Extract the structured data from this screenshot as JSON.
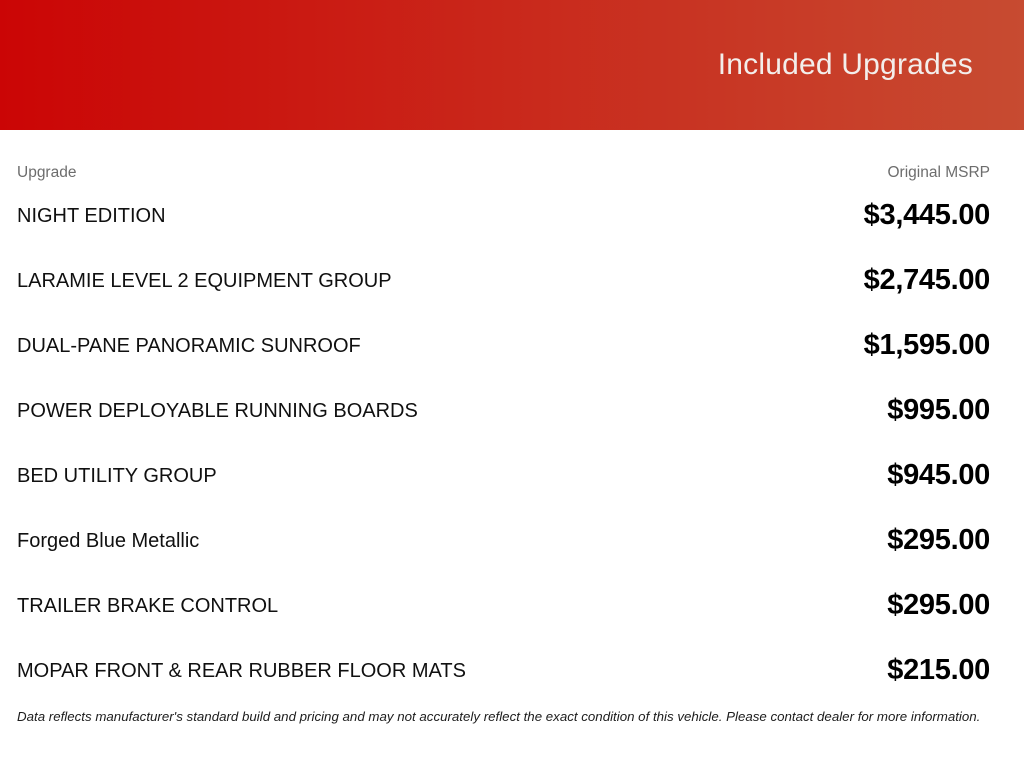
{
  "header": {
    "title": "Included Upgrades"
  },
  "table": {
    "columns": {
      "upgrade": "Upgrade",
      "msrp": "Original MSRP"
    },
    "rows": [
      {
        "name": "NIGHT EDITION",
        "price": "$3,445.00"
      },
      {
        "name": "LARAMIE LEVEL 2 EQUIPMENT GROUP",
        "price": "$2,745.00"
      },
      {
        "name": "DUAL-PANE PANORAMIC SUNROOF",
        "price": "$1,595.00"
      },
      {
        "name": "POWER DEPLOYABLE RUNNING BOARDS",
        "price": "$995.00"
      },
      {
        "name": "BED UTILITY GROUP",
        "price": "$945.00"
      },
      {
        "name": "Forged Blue Metallic",
        "price": "$295.00"
      },
      {
        "name": "TRAILER BRAKE CONTROL",
        "price": "$295.00"
      },
      {
        "name": "MOPAR FRONT & REAR RUBBER FLOOR MATS",
        "price": "$215.00"
      }
    ]
  },
  "footnote": "Data reflects manufacturer's standard build and pricing and may not accurately reflect the exact condition of this vehicle. Please contact dealer for more information.",
  "colors": {
    "header_gradient_start": "#cb0505",
    "header_gradient_end": "#c74b31",
    "header_title_text": "#f3eeeb",
    "column_header_text": "#6d6d6d"
  }
}
